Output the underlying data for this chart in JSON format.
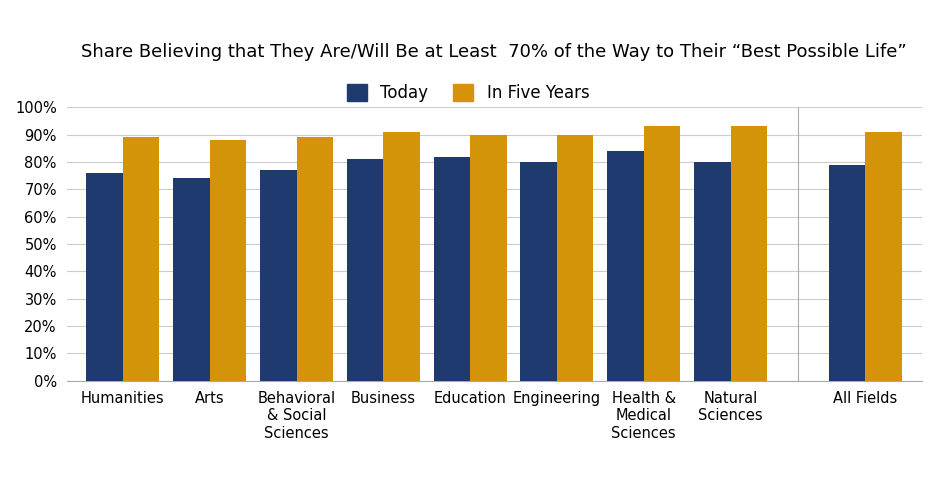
{
  "title": "Share Believing that They Are/Will Be at Least  70% of the Way to Their “Best Possible Life”",
  "categories": [
    "Humanities",
    "Arts",
    "Behavioral\n& Social\nSciences",
    "Business",
    "Education",
    "Engineering",
    "Health &\nMedical\nSciences",
    "Natural\nSciences",
    "All Fields"
  ],
  "today": [
    76,
    74,
    77,
    81,
    82,
    80,
    84,
    80,
    79
  ],
  "five_years": [
    89,
    88,
    89,
    91,
    90,
    90,
    93,
    93,
    91
  ],
  "color_today": "#1e3a6e",
  "color_five_years": "#d4940a",
  "legend_today": "Today",
  "legend_five_years": "In Five Years",
  "ylim": [
    0,
    100
  ],
  "ytick_values": [
    0,
    10,
    20,
    30,
    40,
    50,
    60,
    70,
    80,
    90,
    100
  ],
  "background_color": "#ffffff",
  "grid_color": "#cccccc",
  "bar_width": 0.42,
  "title_fontsize": 13,
  "tick_fontsize": 10.5,
  "legend_fontsize": 12
}
